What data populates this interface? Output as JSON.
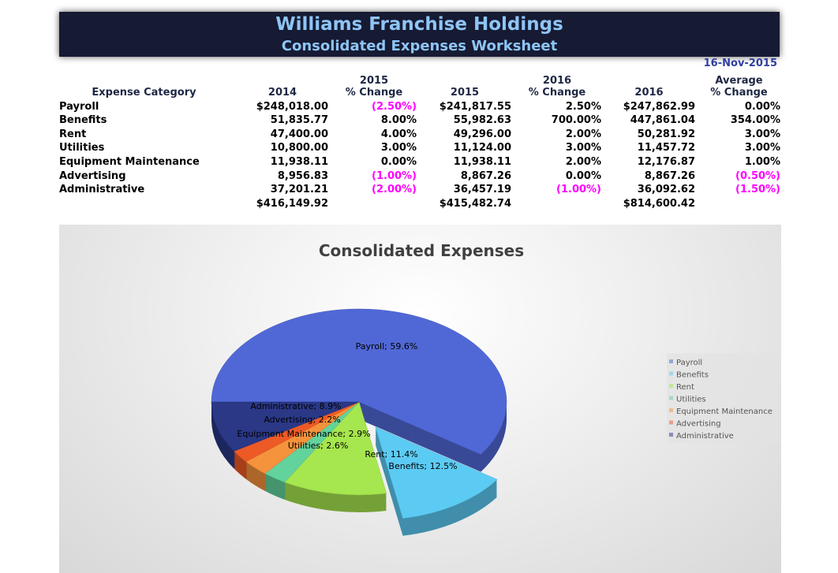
{
  "header": {
    "title": "Williams Franchise Holdings",
    "subtitle": "Consolidated Expenses Worksheet",
    "date": "16-Nov-2015"
  },
  "table": {
    "group_headers": [
      "2015",
      "2016",
      "Average"
    ],
    "columns": [
      "Expense Category",
      "2014",
      "% Change",
      "2015",
      "% Change",
      "2016",
      "% Change"
    ],
    "rows": [
      [
        "Payroll",
        "$248,018.00",
        "(2.50%)",
        "$241,817.55",
        "2.50%",
        "$247,862.99",
        "0.00%"
      ],
      [
        "Benefits",
        "51,835.77",
        "8.00%",
        "55,982.63",
        "700.00%",
        "447,861.04",
        "354.00%"
      ],
      [
        "Rent",
        "47,400.00",
        "4.00%",
        "49,296.00",
        "2.00%",
        "50,281.92",
        "3.00%"
      ],
      [
        "Utilities",
        "10,800.00",
        "3.00%",
        "11,124.00",
        "3.00%",
        "11,457.72",
        "3.00%"
      ],
      [
        "Equipment Maintenance",
        "11,938.11",
        "0.00%",
        "11,938.11",
        "2.00%",
        "12,176.87",
        "1.00%"
      ],
      [
        "Advertising",
        "8,956.83",
        "(1.00%)",
        "8,867.26",
        "0.00%",
        "8,867.26",
        "(0.50%)"
      ],
      [
        "Administrative",
        "37,201.21",
        "(2.00%)",
        "36,457.19",
        "(1.00%)",
        "36,092.62",
        "(1.50%)"
      ]
    ],
    "totals": [
      "$416,149.92",
      "$415,482.74",
      "$814,600.42"
    ]
  },
  "chart_data": {
    "type": "pie",
    "title": "Consolidated Expenses",
    "categories": [
      "Payroll",
      "Benefits",
      "Rent",
      "Utilities",
      "Equipment Maintenance",
      "Advertising",
      "Administrative"
    ],
    "values": [
      59.6,
      12.5,
      11.4,
      2.6,
      2.9,
      2.2,
      8.9
    ],
    "value_labels": [
      "Payroll; 59.6%",
      "Benefits; 12.5%",
      "Rent; 11.4%",
      "Utilities; 2.6%",
      "Equipment Maintenance; 2.9%",
      "Advertising; 2.2%",
      "Administrative; 8.9%"
    ],
    "colors": [
      "#5068d6",
      "#5ccbf4",
      "#a6e64e",
      "#62d39c",
      "#f5923c",
      "#ee5a26",
      "#2a3886"
    ],
    "legend": "right"
  }
}
